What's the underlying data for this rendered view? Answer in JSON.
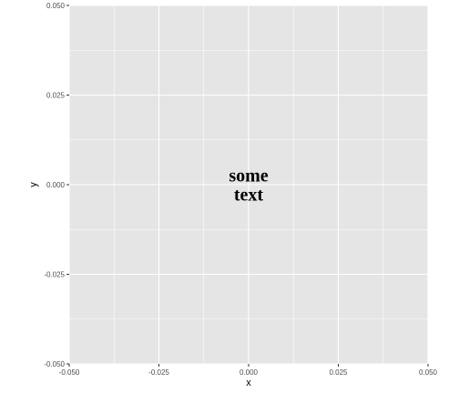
{
  "chart_data": {
    "type": "scatter",
    "xlabel": "x",
    "ylabel": "y",
    "xlim": [
      -0.05,
      0.05
    ],
    "ylim": [
      -0.05,
      0.05
    ],
    "x_ticks": [
      -0.05,
      -0.025,
      0,
      0.025,
      0.05
    ],
    "y_ticks": [
      -0.05,
      -0.025,
      0,
      0.025,
      0.05
    ],
    "x_tick_labels": [
      "-0.050",
      "-0.025",
      "0.000",
      "0.025",
      "0.050"
    ],
    "y_tick_labels": [
      "-0.050",
      "-0.025",
      "0.000",
      "0.025",
      "0.050"
    ],
    "grid": true,
    "panel_background": "#e5e5e5",
    "gridline_color": "#ffffff",
    "annotations": [
      {
        "x": 0,
        "y": 0,
        "lines": [
          "some",
          "text"
        ]
      }
    ]
  }
}
